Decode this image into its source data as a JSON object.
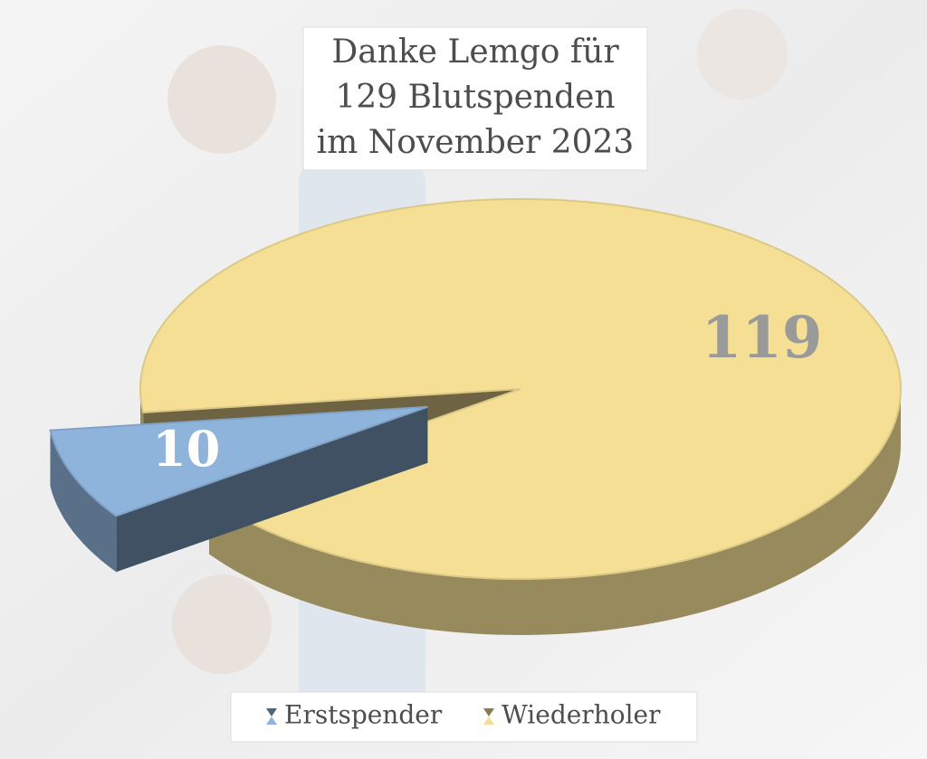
{
  "chart_data": {
    "type": "pie3d",
    "title": [
      "Danke Lemgo für",
      "129 Blutspenden",
      "im November 2023"
    ],
    "categories": [
      "Erstspender",
      "Wiederholer"
    ],
    "values": [
      10,
      119
    ],
    "colors": [
      "#8fb4dc",
      "#f4df94"
    ],
    "legend": "bottom"
  }
}
